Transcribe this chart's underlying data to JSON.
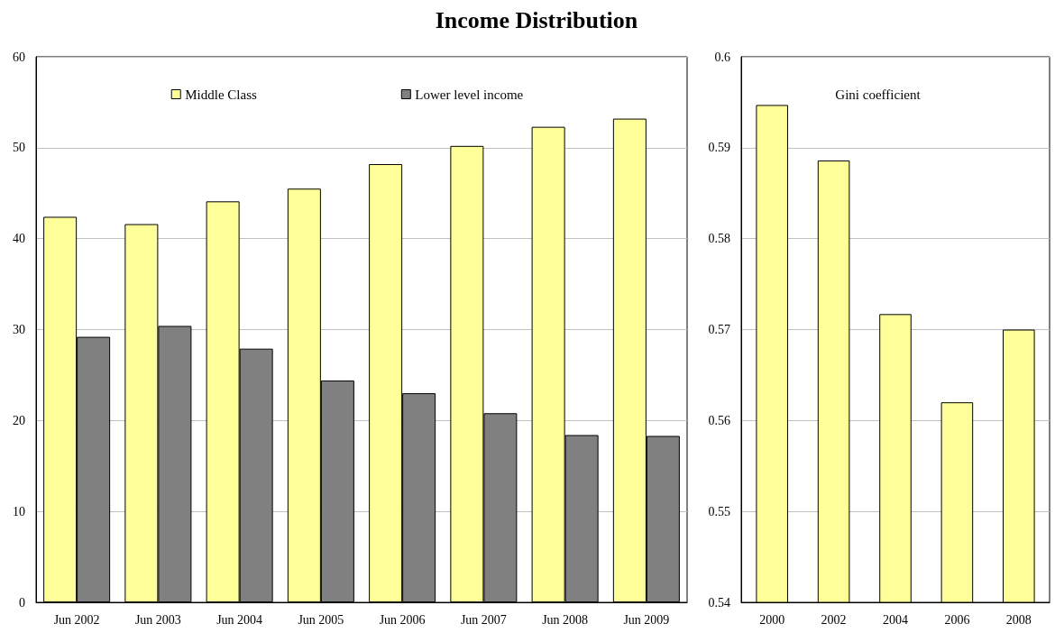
{
  "chart_data": [
    {
      "type": "bar",
      "title": "Income Distribution",
      "categories": [
        "Jun 2002",
        "Jun 2003",
        "Jun 2004",
        "Jun 2005",
        "Jun 2006",
        "Jun 2007",
        "Jun 2008",
        "Jun 2009"
      ],
      "series": [
        {
          "name": "Middle Class",
          "color": "#ffff99",
          "values": [
            42.4,
            41.6,
            44.1,
            45.5,
            48.2,
            50.2,
            52.3,
            53.2
          ]
        },
        {
          "name": "Lower level income",
          "color": "#808080",
          "values": [
            29.2,
            30.4,
            27.9,
            24.4,
            23.0,
            20.8,
            18.4,
            18.3
          ]
        }
      ],
      "ylim": [
        0,
        60
      ],
      "yticks": [
        0,
        10,
        20,
        30,
        40,
        50,
        60
      ],
      "grid": "y",
      "legend": "top"
    },
    {
      "type": "bar",
      "categories": [
        "2000",
        "2002",
        "2004",
        "2006",
        "2008"
      ],
      "series": [
        {
          "name": "Gini coefficient",
          "color": "#ffff99",
          "values": [
            0.5947,
            0.5886,
            0.5717,
            0.562,
            0.57
          ]
        }
      ],
      "ylim": [
        0.54,
        0.6
      ],
      "yticks": [
        0.54,
        0.55,
        0.56,
        0.57,
        0.58,
        0.59,
        0.6
      ],
      "grid": "y",
      "legend": "top"
    }
  ]
}
